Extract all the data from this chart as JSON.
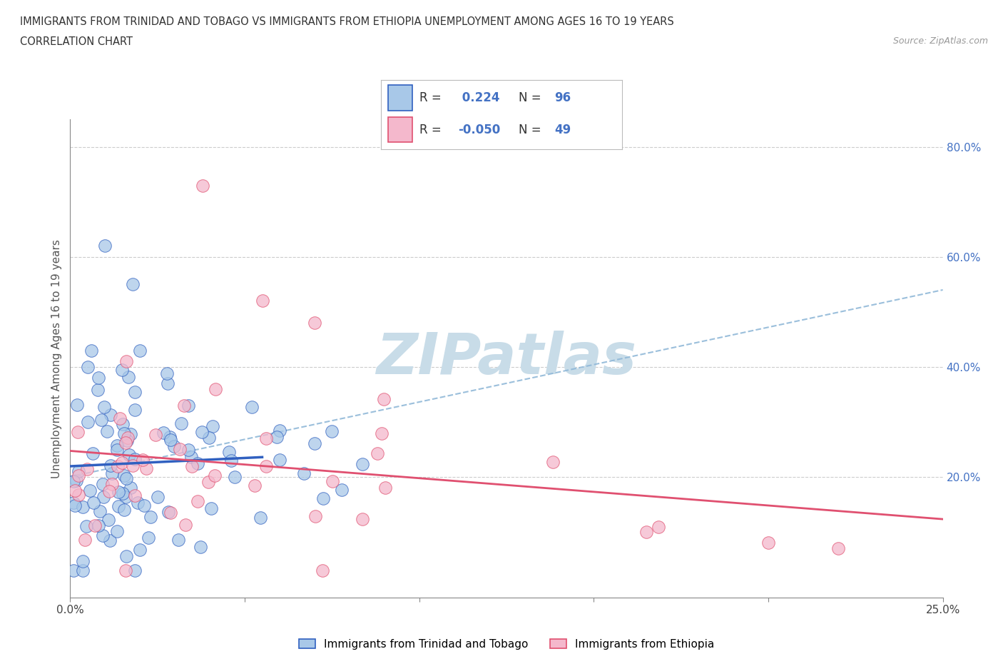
{
  "title_line1": "IMMIGRANTS FROM TRINIDAD AND TOBAGO VS IMMIGRANTS FROM ETHIOPIA UNEMPLOYMENT AMONG AGES 16 TO 19 YEARS",
  "title_line2": "CORRELATION CHART",
  "source_text": "Source: ZipAtlas.com",
  "ylabel": "Unemployment Among Ages 16 to 19 years",
  "legend_label1": "Immigrants from Trinidad and Tobago",
  "legend_label2": "Immigrants from Ethiopia",
  "R1": 0.224,
  "N1": 96,
  "R2": -0.05,
  "N2": 49,
  "color1": "#a8c8e8",
  "color2": "#f4b8cc",
  "line_color1": "#3060c0",
  "line_color2": "#e05070",
  "dash_color": "#90b8d8",
  "watermark_color": "#c8dce8",
  "xlim": [
    0.0,
    0.25
  ],
  "ylim": [
    -0.02,
    0.85
  ],
  "bg_color": "#ffffff",
  "grid_color": "#cccccc"
}
